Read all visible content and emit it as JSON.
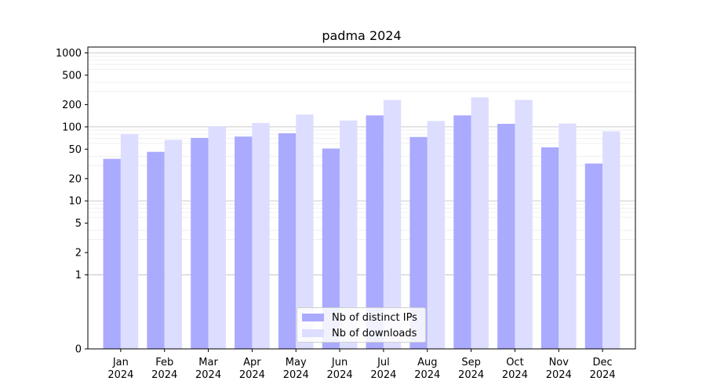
{
  "chart_data": {
    "type": "bar",
    "title": "padma 2024",
    "xlabel": "",
    "ylabel": "",
    "yscale": "symlog",
    "ylim": [
      0,
      1200
    ],
    "y_ticks": [
      0,
      1,
      2,
      5,
      10,
      20,
      50,
      100,
      200,
      500,
      1000
    ],
    "grid": true,
    "legend_position": "bottom-center",
    "categories": [
      "Jan\n2024",
      "Feb\n2024",
      "Mar\n2024",
      "Apr\n2024",
      "May\n2024",
      "Jun\n2024",
      "Jul\n2024",
      "Aug\n2024",
      "Sep\n2024",
      "Oct\n2024",
      "Nov\n2024",
      "Dec\n2024"
    ],
    "series": [
      {
        "name": "Nb of distinct IPs",
        "color": "#aaaaff",
        "values": [
          37,
          46,
          71,
          74,
          82,
          51,
          143,
          73,
          143,
          110,
          53,
          32
        ]
      },
      {
        "name": "Nb of downloads",
        "color": "#ddddff",
        "values": [
          80,
          67,
          102,
          113,
          147,
          122,
          231,
          120,
          250,
          232,
          111,
          87
        ]
      }
    ]
  }
}
